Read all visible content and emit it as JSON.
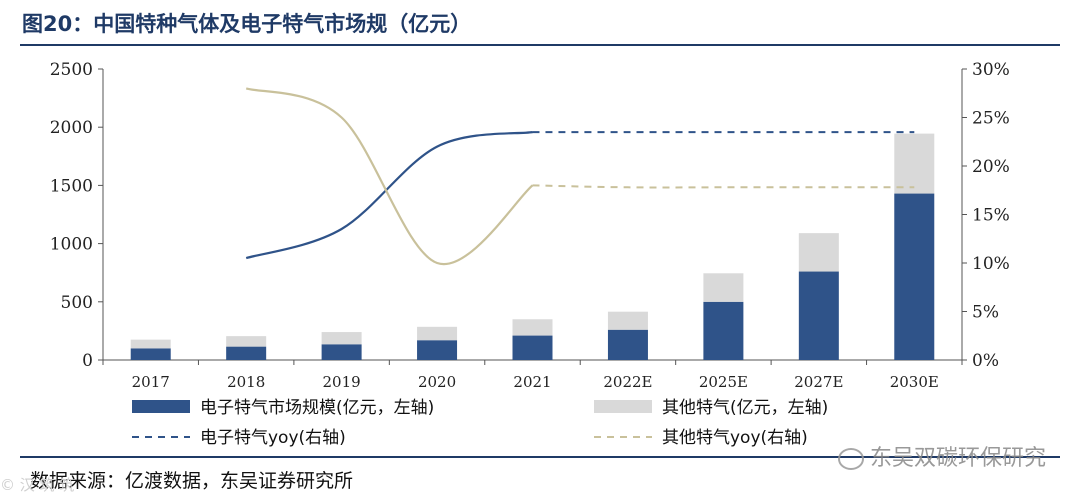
{
  "figure": {
    "title": "图20：中国特种气体及电子特气市场规（亿元）",
    "source": "数据来源：亿渡数据，东吴证券研究所",
    "watermark": "东吴双碳环保研究",
    "corner_mark": "© 汉 筑 筑"
  },
  "colors": {
    "navy": "#2f5389",
    "light_gray": "#d9d9d9",
    "tan": "#c9c19b",
    "axis": "#555555",
    "title": "#1f3a66"
  },
  "chart_data": {
    "type": "bar",
    "stacked": true,
    "categories": [
      "2017",
      "2018",
      "2019",
      "2020",
      "2021",
      "2022E",
      "2025E",
      "2027E",
      "2030E"
    ],
    "series": [
      {
        "name": "电子特气市场规模(亿元，左轴)",
        "type": "bar",
        "axis": "left",
        "color": "#2f5389",
        "values": [
          100,
          115,
          135,
          170,
          210,
          260,
          500,
          760,
          1430
        ]
      },
      {
        "name": "其他特气(亿元，左轴)",
        "type": "bar",
        "axis": "left",
        "color": "#d9d9d9",
        "values": [
          75,
          90,
          105,
          115,
          140,
          155,
          245,
          330,
          515
        ]
      },
      {
        "name": "电子特气yoy(右轴)",
        "type": "line",
        "axis": "right",
        "color": "#2f5389",
        "values": [
          null,
          10.5,
          13.5,
          22.0,
          23.5,
          23.5,
          23.5,
          23.5,
          23.5
        ],
        "dashed_from": "2021"
      },
      {
        "name": "其他特气yoy(右轴)",
        "type": "line",
        "axis": "right",
        "color": "#c9c19b",
        "values": [
          null,
          28.0,
          25.0,
          10.0,
          18.0,
          17.8,
          17.8,
          17.8,
          17.8
        ],
        "dashed_from": "2021"
      }
    ],
    "y_left": {
      "min": 0,
      "max": 2500,
      "ticks": [
        "0",
        "500",
        "1000",
        "1500",
        "2000",
        "2500"
      ]
    },
    "y_right": {
      "min": 0,
      "max": 30,
      "ticks": [
        "0%",
        "5%",
        "10%",
        "15%",
        "20%",
        "25%",
        "30%"
      ]
    },
    "legend_position": "bottom"
  }
}
